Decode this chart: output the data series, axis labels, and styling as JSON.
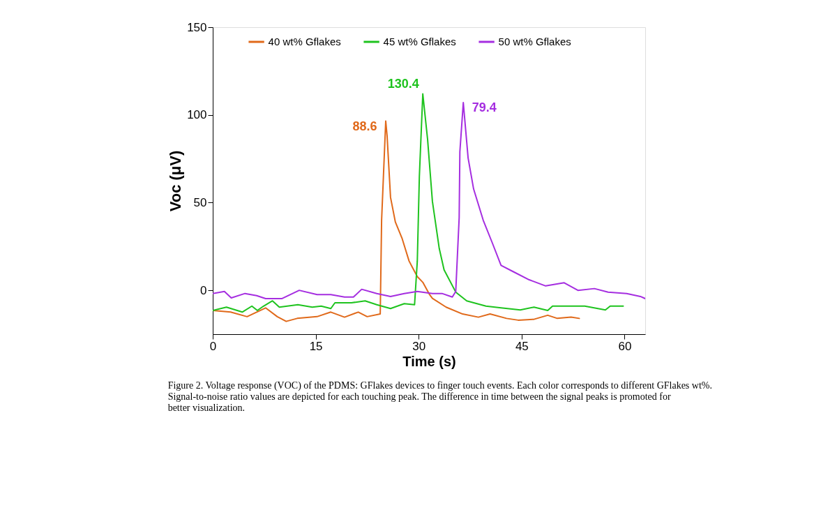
{
  "chart_data": {
    "type": "line",
    "xlabel": "Time (s)",
    "ylabel": "Voc (μV)",
    "xlim": [
      0,
      63
    ],
    "xticks": [
      0,
      15,
      30,
      45,
      60
    ],
    "ylim": [
      -25,
      150
    ],
    "yticks": [
      0,
      50,
      100,
      150
    ],
    "legend": "top",
    "grid": false,
    "line_style": "solid",
    "series": [
      {
        "name": "40 wt% Gflakes",
        "color": "#e0691a",
        "x": [
          0,
          2.6,
          5,
          7.7,
          9.4,
          10.7,
          12.3,
          15.2,
          17.2,
          19.2,
          21.2,
          22.5,
          24.4,
          24.6,
          25.2,
          25.4,
          25.9,
          26.6,
          27.6,
          28.6,
          29.1,
          29.8,
          30.6,
          31.6,
          32,
          34,
          36.4,
          38.7,
          40.4,
          42.8,
          44.5,
          46.8,
          48.8,
          50.2,
          52.2,
          53.4
        ],
        "values": [
          -11.5,
          -12.4,
          -15,
          -10,
          -15,
          -17.7,
          -16,
          -15,
          -12.4,
          -15.3,
          -12.4,
          -15,
          -13.5,
          40,
          96.5,
          88,
          53,
          39,
          29.4,
          16.7,
          13,
          7.8,
          4.6,
          -2.5,
          -4.6,
          -9.6,
          -13.5,
          -15.3,
          -13.5,
          -16,
          -17,
          -16.5,
          -14.2,
          -16,
          -15.3,
          -16
        ]
      },
      {
        "name": "45 wt% Gflakes",
        "color": "#1ec31e",
        "x": [
          0,
          2,
          4.3,
          5.7,
          6.5,
          7.4,
          8.7,
          9.7,
          12.4,
          14.5,
          15.8,
          17.2,
          17.8,
          20.2,
          22.2,
          23.9,
          25.9,
          27.9,
          29.4,
          29.8,
          30.1,
          30.6,
          31.3,
          32,
          33,
          33.7,
          35.4,
          37,
          39.8,
          42,
          44.8,
          46.8,
          48.8,
          49.5,
          52.2,
          54.2,
          57.2,
          57.9,
          59.8
        ],
        "values": [
          -11.5,
          -9.6,
          -12.4,
          -9,
          -11.5,
          -9,
          -6,
          -9.6,
          -8.2,
          -9.6,
          -9,
          -10.4,
          -7.1,
          -7.1,
          -6,
          -8.2,
          -10.4,
          -7.6,
          -8.2,
          16.7,
          65,
          112,
          86,
          50.7,
          23.8,
          11.7,
          -1,
          -6,
          -9,
          -10,
          -11.2,
          -9.6,
          -11.5,
          -9,
          -9,
          -9,
          -11.2,
          -9,
          -9
        ]
      },
      {
        "name": "50 wt% Gflakes",
        "color": "#a52ee0",
        "x": [
          0,
          1.7,
          2.7,
          4.7,
          6.4,
          7.7,
          10.1,
          12.6,
          15.2,
          17.2,
          19.2,
          20.5,
          21.7,
          23.9,
          25.9,
          27.9,
          29.8,
          32,
          33.4,
          34.9,
          35.4,
          35.9,
          36,
          36.5,
          37.2,
          38,
          39.4,
          40.7,
          42,
          43.8,
          46.1,
          48.5,
          51.2,
          53.2,
          55.6,
          57.6,
          60.3,
          62.3,
          63
        ],
        "values": [
          -1.8,
          -0.6,
          -4.3,
          -1.8,
          -3,
          -4.7,
          -4.7,
          0,
          -2.4,
          -2.4,
          -3.8,
          -3.8,
          0.6,
          -1.8,
          -3.5,
          -1.8,
          -0.6,
          -1.8,
          -1.8,
          -3.8,
          -0.6,
          41.5,
          79,
          107,
          75.5,
          57.8,
          40,
          27.3,
          14.2,
          10.6,
          6,
          2.5,
          4.3,
          0,
          1,
          -1,
          -1.8,
          -3.5,
          -4.7
        ]
      }
    ],
    "annotations": [
      "88.6",
      "130.4",
      "79.4",
      "Figure 2. Voltage response (VOC) of the PDMS: GFlakes devices to finger touch events. Each color corresponds to different GFlakes wt%. Signal-to-noise ratio values are depicted for each touching peak. The difference in time between the signal peaks is promoted for better visualization."
    ]
  }
}
